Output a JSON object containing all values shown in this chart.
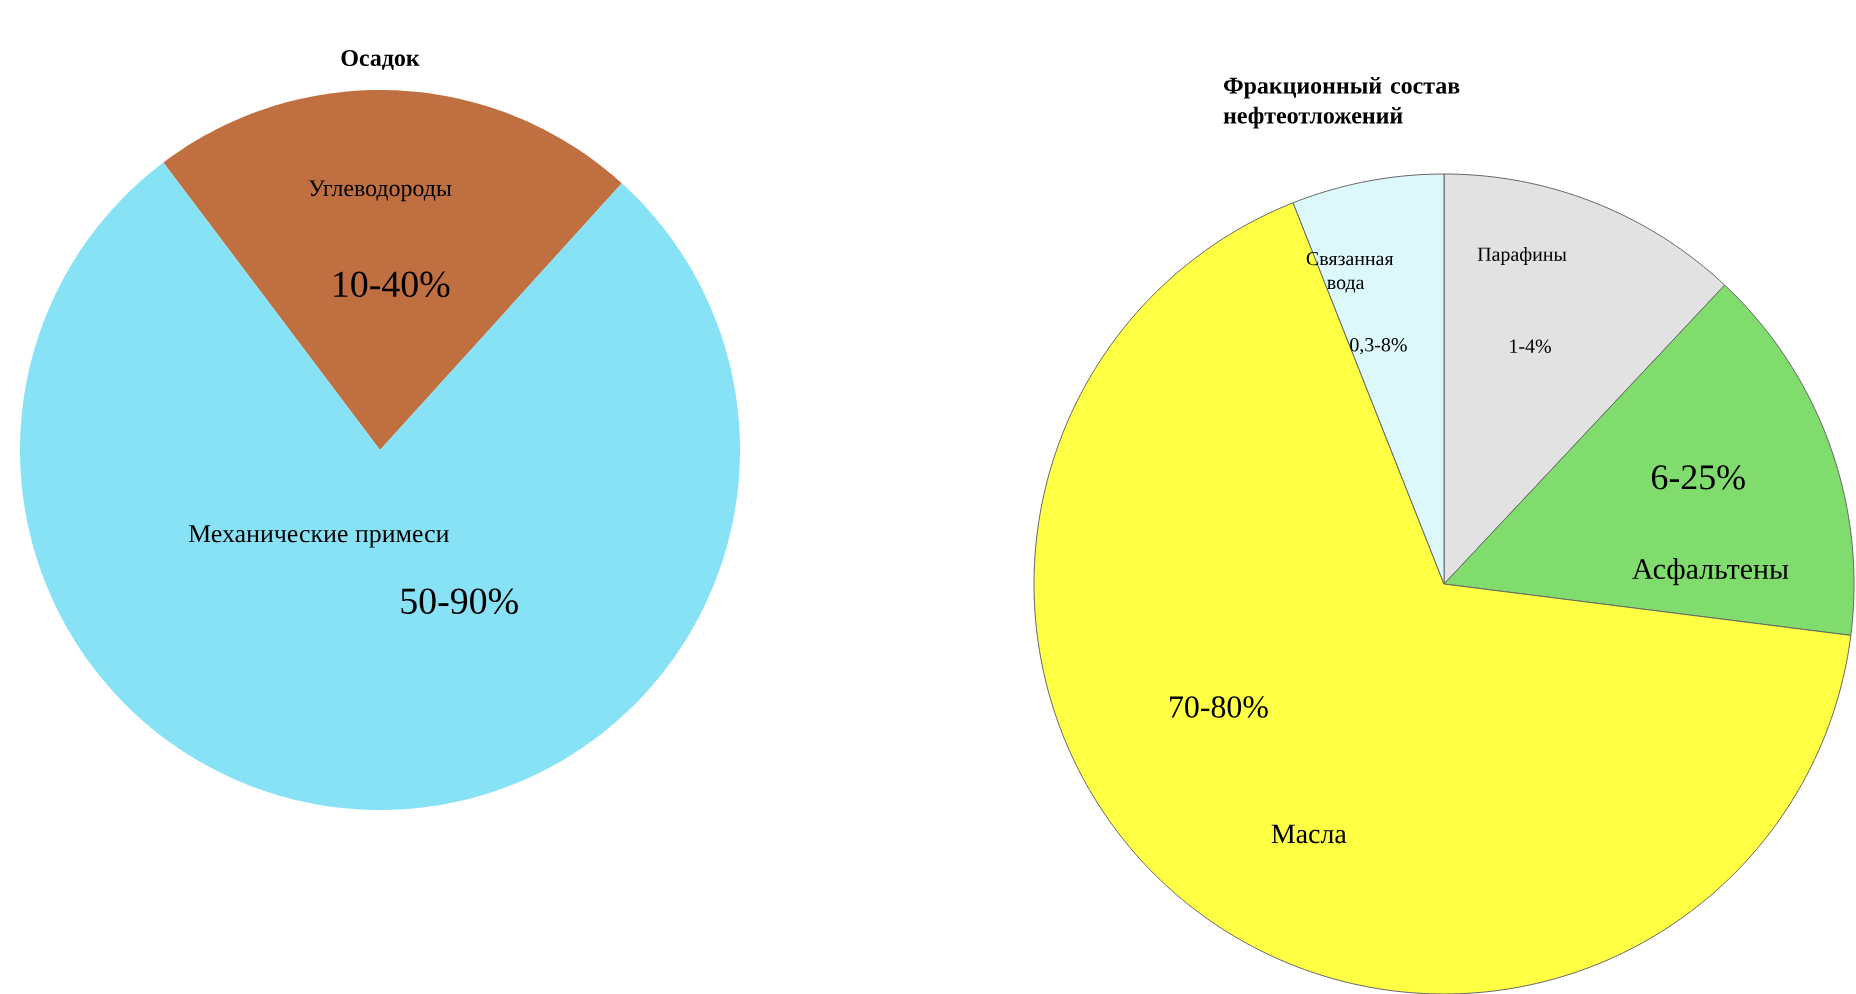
{
  "chart_data": [
    {
      "type": "pie",
      "title": "Осадок",
      "categories": [
        "Углеводороды",
        "Механические примеси"
      ],
      "values": [
        22,
        78
      ],
      "colors": [
        "#c07040",
        "#88e2f6"
      ],
      "annotations": [
        "10-40%",
        "50-90%"
      ]
    },
    {
      "type": "pie",
      "title": "Фракционный состав нефтеотложений",
      "categories": [
        "Парафины",
        "Асфальтены",
        "Масла",
        "Связанная вода"
      ],
      "values": [
        12,
        15,
        67,
        6
      ],
      "colors": [
        "#e2e2e2",
        "#80dc6c",
        "#ffff44",
        "#ddf8fb"
      ],
      "annotations": [
        "1-4%",
        "6-25%",
        "70-80%",
        "0,3-8%"
      ]
    }
  ]
}
